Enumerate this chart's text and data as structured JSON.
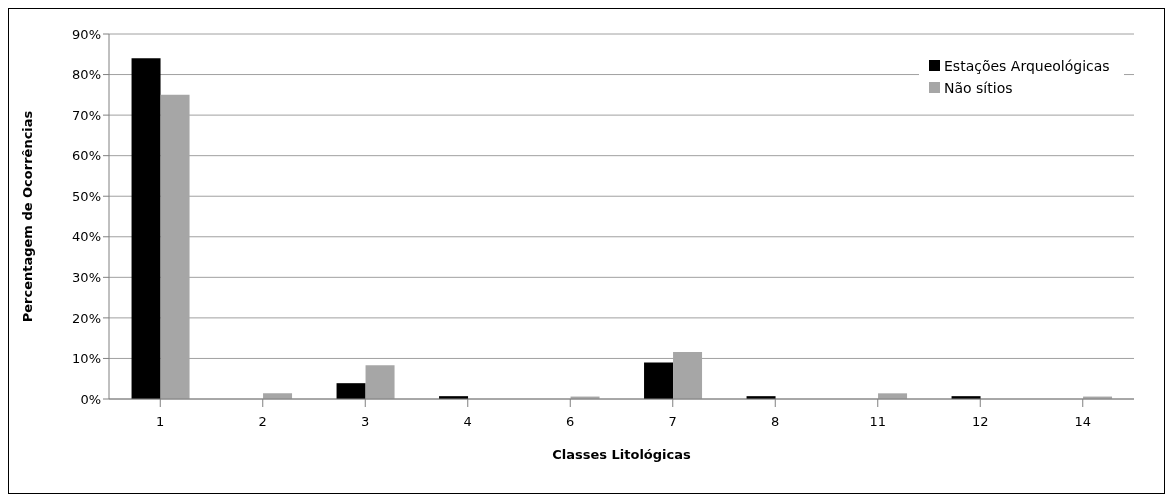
{
  "chart_data": {
    "type": "bar",
    "xlabel": "Classes Litológicas",
    "ylabel": "Percentagem de Ocorrências",
    "categories": [
      "1",
      "2",
      "3",
      "4",
      "6",
      "7",
      "8",
      "11",
      "12",
      "14"
    ],
    "series": [
      {
        "name": "Estações Arqueológicas",
        "color": "#000000",
        "values": [
          84,
          0,
          3.9,
          0.7,
          0,
          9,
          0.7,
          0,
          0.7,
          0
        ]
      },
      {
        "name": "Não sítios",
        "color": "#a6a6a6",
        "values": [
          75,
          1.4,
          8.3,
          0,
          0.6,
          11.6,
          0,
          1.4,
          0,
          0.6
        ]
      }
    ],
    "ylim": [
      0,
      90
    ],
    "yticks": [
      {
        "value": 0,
        "label": "0%"
      },
      {
        "value": 10,
        "label": "10%"
      },
      {
        "value": 20,
        "label": "20%"
      },
      {
        "value": 30,
        "label": "30%"
      },
      {
        "value": 40,
        "label": "40%"
      },
      {
        "value": 50,
        "label": "50%"
      },
      {
        "value": 60,
        "label": "60%"
      },
      {
        "value": 70,
        "label": "70%"
      },
      {
        "value": 80,
        "label": "80%"
      },
      {
        "value": 90,
        "label": "90%"
      }
    ],
    "grid": "y",
    "legend": "top right"
  }
}
